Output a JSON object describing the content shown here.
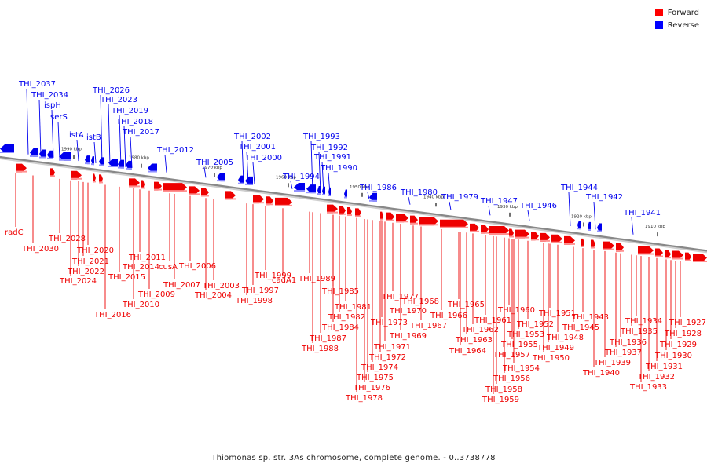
{
  "legend": [
    {
      "label": "Forward",
      "color": "#ff0000"
    },
    {
      "label": "Reverse",
      "color": "#0000ff"
    }
  ],
  "caption": "Thiomonas sp. str. 3As chromosome, complete genome. - 0..3738778",
  "colors": {
    "forward": "#ee0000",
    "reverse": "#0000ee",
    "backbone": "#888888"
  },
  "ticks": [
    "1990 kbp",
    "1980 kbp",
    "1970 kbp",
    "1960 kbp",
    "1950 kbp",
    "1940 kbp",
    "1930 kbp",
    "1920 kbp",
    "1910 kbp"
  ],
  "reverse_labels": [
    "THI_2037",
    "THI_2034",
    "ispH",
    "serS",
    "istA",
    "istB",
    "THI_2026",
    "THI_2023",
    "THI_2019",
    "THI_2018",
    "THI_2017",
    "THI_2012",
    "THI_2005",
    "THI_2002",
    "THI_2001",
    "THI_2000",
    "THI_1994",
    "THI_1993",
    "THI_1992",
    "THI_1991",
    "THI_1990",
    "THI_1986",
    "THI_1980",
    "THI_1979",
    "THI_1947",
    "THI_1946",
    "THI_1944",
    "THI_1942",
    "THI_1941"
  ],
  "forward_labels": [
    "radC",
    "THI_2030",
    "THI_2028",
    "THI_2020",
    "THI_2021",
    "THI_2022",
    "THI_2024",
    "THI_2011",
    "THI_2014",
    "THI_2015",
    "cusA",
    "THI_2016",
    "THI_2009",
    "THI_2010",
    "THI_2007",
    "THI_2006",
    "THI_2004",
    "THI_2003",
    "THI_1999",
    "THI_1997",
    "THI_1998",
    "cadA1",
    "THI_1989",
    "THI_1985",
    "THI_1981",
    "THI_1982",
    "THI_1984",
    "THI_1987",
    "THI_1988",
    "THI_1977",
    "THI_1970",
    "THI_1973",
    "THI_1971",
    "THI_1972",
    "THI_1974",
    "THI_1975",
    "THI_1976",
    "THI_1978",
    "THI_1968",
    "THI_1967",
    "THI_1969",
    "THI_1966",
    "THI_1965",
    "THI_1962",
    "THI_1963",
    "THI_1964",
    "THI_1960",
    "THI_1961",
    "THI_1953",
    "THI_1955",
    "THI_1957",
    "THI_1954",
    "THI_1956",
    "THI_1958",
    "THI_1959",
    "THI_1951",
    "THI_1952",
    "THI_1948",
    "THI_1949",
    "THI_1950",
    "THI_1943",
    "THI_1945",
    "THI_1934",
    "THI_1935",
    "THI_1936",
    "THI_1937",
    "THI_1939",
    "THI_1940",
    "THI_1927",
    "THI_1928",
    "THI_1929",
    "THI_1930",
    "THI_1931",
    "THI_1932",
    "THI_1933"
  ]
}
